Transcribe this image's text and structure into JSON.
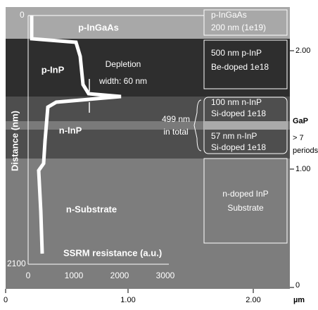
{
  "plot": {
    "y_axis_title": "Distance (nm)",
    "y_top": "0",
    "y_bottom": "2100",
    "x_axis_title": "SSRM resistance (a.u.)",
    "x_ticks": [
      "0",
      "1000",
      "2000",
      "3000"
    ]
  },
  "layers": {
    "p_ingaas": "p-InGaAs",
    "p_inp": "p-InP",
    "n_inp": "n-InP",
    "n_substrate": "n-Substrate"
  },
  "depletion": [
    "Depletion",
    "width: 60 nm"
  ],
  "boxes": [
    [
      "p-InGaAs",
      "200 nm (1e19)"
    ],
    [
      "500 nm p-InP",
      "Be-doped 1e18"
    ],
    [
      "100 nm n-InP",
      "Si-doped 1e18"
    ],
    [
      "57 nm n-InP",
      "Si-doped 1e18"
    ],
    [
      "n-doped InP",
      "Substrate"
    ]
  ],
  "total": [
    "499 nm",
    "in total"
  ],
  "gap": [
    "GaP",
    "> 7",
    "periods"
  ],
  "right_axis": [
    "2.00",
    "1.00",
    "0"
  ],
  "bottom_axis": [
    "0",
    "1.00",
    "2.00",
    "µm"
  ]
}
